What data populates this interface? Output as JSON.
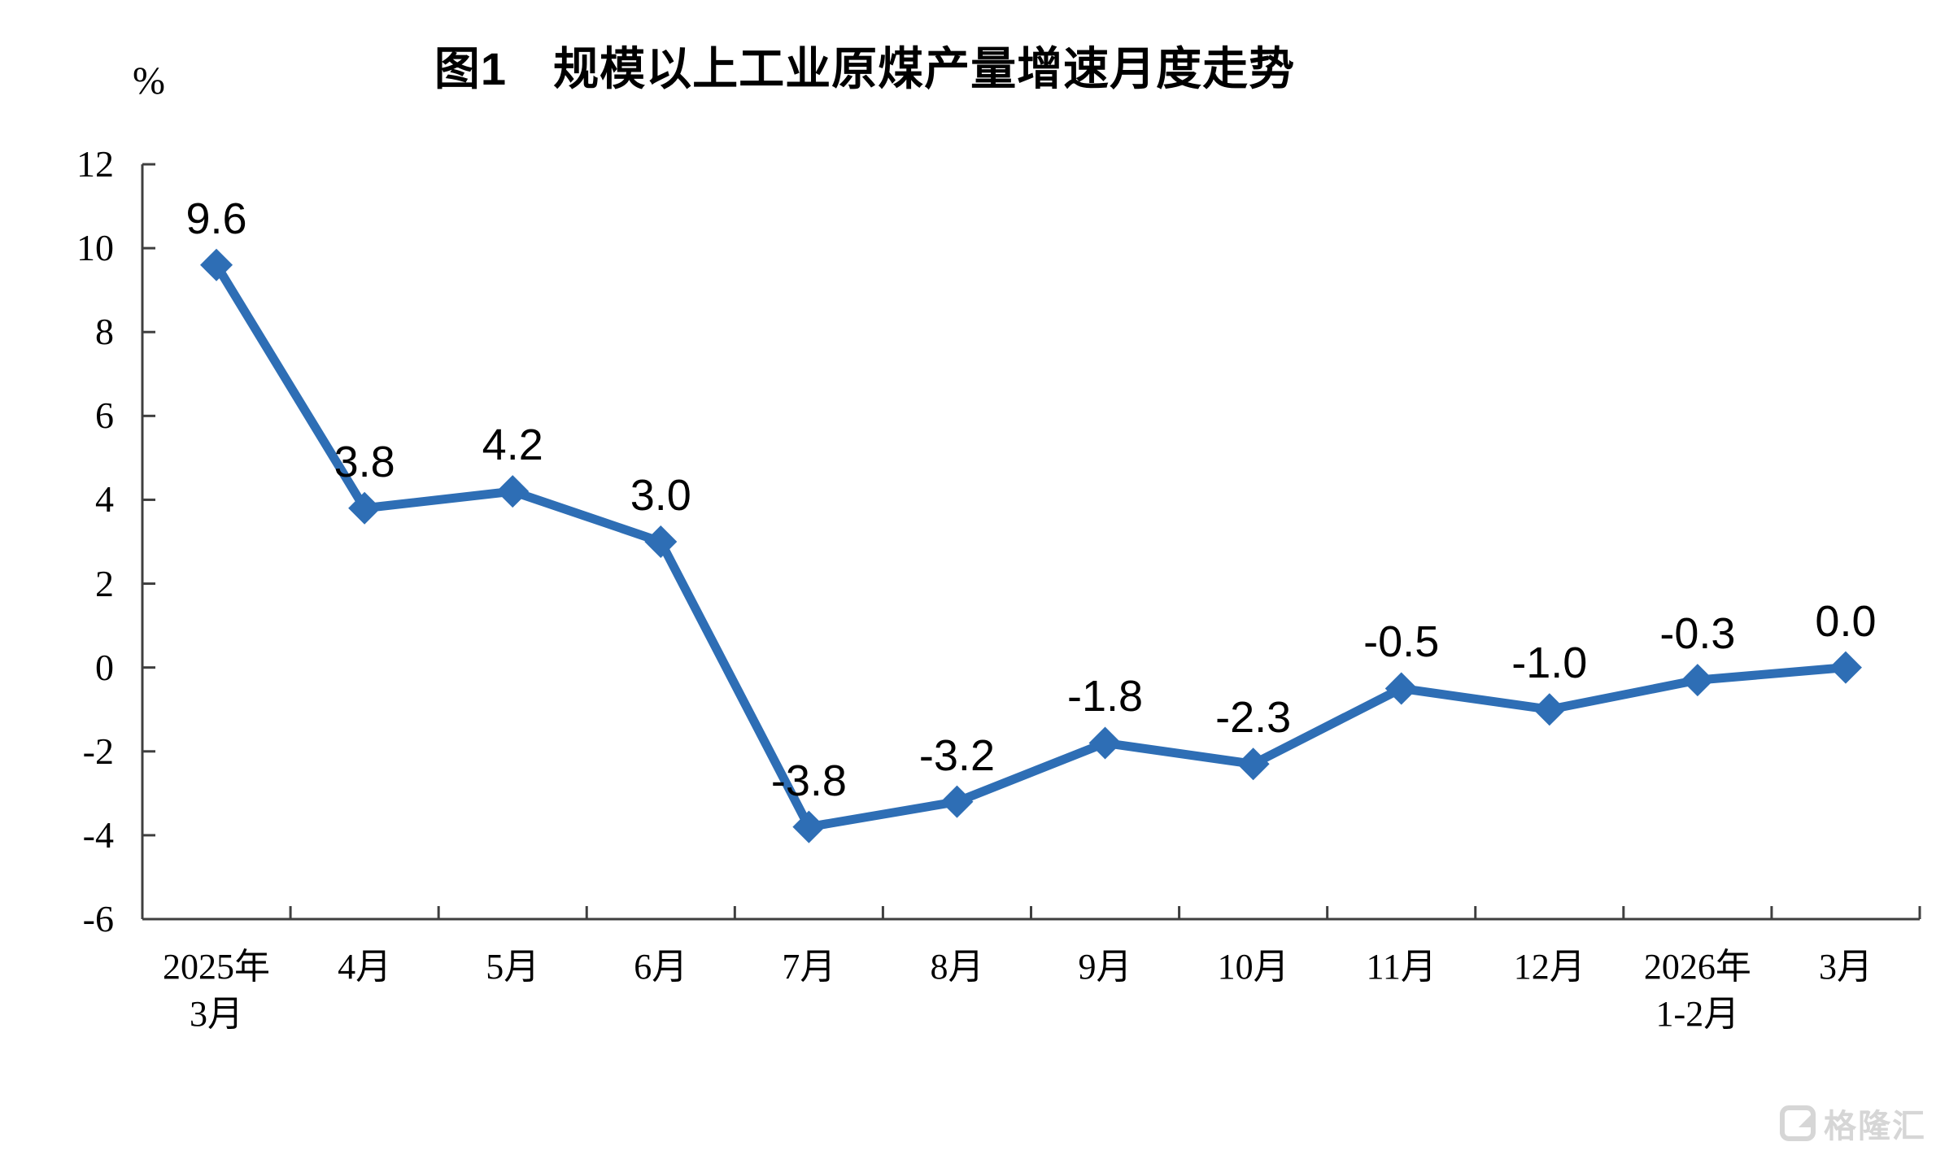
{
  "chart_data": {
    "type": "line",
    "title": "图1　规模以上工业原煤产量增速月度走势",
    "unit_label": "%",
    "categories": [
      {
        "lines": [
          "2025年",
          "3月"
        ]
      },
      {
        "lines": [
          "4月"
        ]
      },
      {
        "lines": [
          "5月"
        ]
      },
      {
        "lines": [
          "6月"
        ]
      },
      {
        "lines": [
          "7月"
        ]
      },
      {
        "lines": [
          "8月"
        ]
      },
      {
        "lines": [
          "9月"
        ]
      },
      {
        "lines": [
          "10月"
        ]
      },
      {
        "lines": [
          "11月"
        ]
      },
      {
        "lines": [
          "12月"
        ]
      },
      {
        "lines": [
          "2026年",
          "1-2月"
        ]
      },
      {
        "lines": [
          "3月"
        ]
      }
    ],
    "series": [
      {
        "name": "规模以上工业原煤产量增速",
        "values": [
          9.6,
          3.8,
          4.2,
          3.0,
          -3.8,
          -3.2,
          -1.8,
          -2.3,
          -0.5,
          -1.0,
          -0.3,
          0.0
        ],
        "data_labels": [
          "9.6",
          "3.8",
          "4.2",
          "3.0",
          "-3.8",
          "-3.2",
          "-1.8",
          "-2.3",
          "-0.5",
          "-1.0",
          "-0.3",
          "0.0"
        ]
      }
    ],
    "ylim": [
      -6,
      12
    ],
    "yticks": [
      12,
      10,
      8,
      6,
      4,
      2,
      0,
      -2,
      -4,
      -6
    ],
    "grid": false,
    "legend_position": "none",
    "marker": "diamond",
    "line_color": "#2e6eb5",
    "axis_color": "#3f3f3f",
    "text_color": "#000000"
  },
  "watermark": {
    "text": "格隆汇",
    "logo": "G-logo",
    "color": "#d6d6d6"
  }
}
